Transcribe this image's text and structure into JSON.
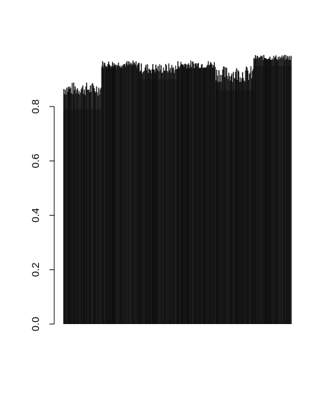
{
  "chart_data": {
    "type": "bar",
    "title": "",
    "xlabel": "",
    "ylabel": "",
    "ylim": [
      0,
      1.08
    ],
    "yticks": [
      0.0,
      0.2,
      0.4,
      0.6,
      0.8
    ],
    "ytick_labels": [
      "0.0",
      "0.2",
      "0.4",
      "0.6",
      "0.8"
    ],
    "grid": false,
    "legend": "none",
    "bar_color": "#111111",
    "groups": [
      {
        "count": 50,
        "base": 0.79,
        "top_min": 0.84,
        "top_max": 0.89
      },
      {
        "count": 50,
        "base": 0.95,
        "top_min": 0.94,
        "top_max": 0.97
      },
      {
        "count": 50,
        "base": 0.9,
        "top_min": 0.92,
        "top_max": 0.96
      },
      {
        "count": 50,
        "base": 0.94,
        "top_min": 0.94,
        "top_max": 0.97
      },
      {
        "count": 50,
        "base": 0.86,
        "top_min": 0.89,
        "top_max": 0.95
      },
      {
        "count": 50,
        "base": 0.95,
        "top_min": 0.97,
        "top_max": 0.99
      }
    ]
  }
}
